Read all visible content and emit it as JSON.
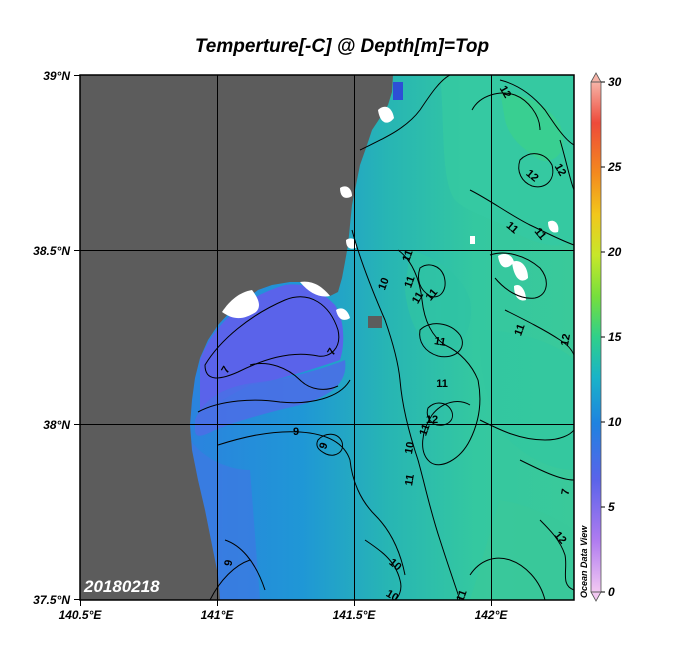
{
  "map": {
    "title": "Temperture[-C] @ Depth[m]=Top",
    "date_stamp": "20180218",
    "watermark": "Ocean Data View",
    "lat_labels": [
      "39°N",
      "38.5°N",
      "38°N",
      "37.5°N"
    ],
    "lon_labels": [
      "140.5°E",
      "141°E",
      "141.5°E",
      "142°E"
    ],
    "colorbar": {
      "min": 0,
      "max": 30,
      "ticks": [
        "30",
        "25",
        "20",
        "15",
        "10",
        "5",
        "0"
      ]
    },
    "contour_labels": [
      {
        "id": "c1",
        "text": "12"
      },
      {
        "id": "c2",
        "text": "12"
      },
      {
        "id": "c3",
        "text": "12"
      },
      {
        "id": "c4",
        "text": "11"
      },
      {
        "id": "c5",
        "text": "11"
      },
      {
        "id": "c6",
        "text": "11"
      },
      {
        "id": "c7",
        "text": "10"
      },
      {
        "id": "c8",
        "text": "11"
      },
      {
        "id": "c9",
        "text": "11"
      },
      {
        "id": "c10",
        "text": "11"
      },
      {
        "id": "c11",
        "text": "11"
      },
      {
        "id": "c12",
        "text": "12"
      },
      {
        "id": "c13",
        "text": "7"
      },
      {
        "id": "c14",
        "text": "7"
      },
      {
        "id": "c15",
        "text": "11"
      },
      {
        "id": "c16",
        "text": "12"
      },
      {
        "id": "c17",
        "text": "9"
      },
      {
        "id": "c18",
        "text": "9"
      },
      {
        "id": "c19",
        "text": "11"
      },
      {
        "id": "c20",
        "text": "10"
      },
      {
        "id": "c21",
        "text": "11"
      },
      {
        "id": "c22",
        "text": "11"
      },
      {
        "id": "c23",
        "text": "7"
      },
      {
        "id": "c24",
        "text": "12"
      },
      {
        "id": "c25",
        "text": "9"
      },
      {
        "id": "c26",
        "text": "10"
      },
      {
        "id": "c27",
        "text": "10"
      },
      {
        "id": "c28",
        "text": "11"
      }
    ],
    "colors": {
      "land": "#5c5c5c",
      "cold_water": "#5a63ea",
      "mid_water": "#2e7ae0",
      "warm_water": "#35c4a0"
    }
  }
}
